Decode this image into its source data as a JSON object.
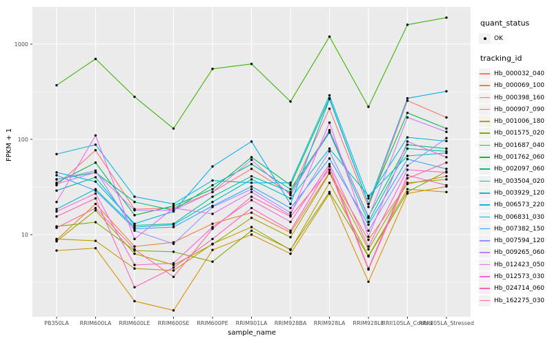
{
  "legend": {
    "quant_status_title": "quant_status",
    "quant_status_items": [
      {
        "label": "OK",
        "symbol": "black-point"
      }
    ],
    "tracking_id_title": "tracking_id"
  },
  "colors": {
    "panel_background": "#EBEBEB",
    "gridline": "#FFFFFF",
    "axis_text": "#4D4D4D",
    "tick_mark": "#333333",
    "point": "#000000",
    "legend_key_background": "#F2F2F2"
  },
  "chart_data": {
    "type": "line",
    "title": "",
    "xlabel": "sample_name",
    "ylabel": "FPKM + 1",
    "y_scale": "log10",
    "y_ticks": [
      10,
      100,
      1000
    ],
    "y_minor_gridlines": [
      3.162,
      31.62,
      316.2
    ],
    "ylim": [
      1.3,
      2500
    ],
    "grid": true,
    "legend_position": "right",
    "point_shape": "filled-circle",
    "categories": [
      "PB350LA",
      "RRIM600LA",
      "RRIM600LE",
      "RRIM600SE",
      "RRIM600PE",
      "RRIM901LA",
      "RRIM928BA",
      "RRIM928LA",
      "RRIM928LE",
      "RRII105LA_Control",
      "RRII105LA_Stressed"
    ],
    "series": [
      {
        "name": "Hb_000032_040",
        "color": "#F8766D",
        "values": [
          33,
          77,
          18.5,
          19,
          28,
          49,
          27,
          210,
          19.5,
          255,
          170
        ]
      },
      {
        "name": "Hb_000069_100",
        "color": "#EA8331",
        "values": [
          8.8,
          21,
          7.5,
          8.3,
          13,
          17,
          10.5,
          45,
          8.8,
          34,
          41
        ]
      },
      {
        "name": "Hb_000398_160",
        "color": "#D89000",
        "values": [
          6.8,
          7.2,
          2.0,
          1.6,
          6.9,
          10,
          6.3,
          27,
          3.2,
          27,
          32
        ]
      },
      {
        "name": "Hb_000907_090",
        "color": "#C09B00",
        "values": [
          9.0,
          8.6,
          4.4,
          4.2,
          8.0,
          12,
          6.9,
          35,
          6.0,
          30,
          28
        ]
      },
      {
        "name": "Hb_001006_180",
        "color": "#A3A500",
        "values": [
          8.5,
          18,
          6.3,
          4.8,
          7.9,
          15,
          9.4,
          44,
          7.0,
          35,
          38
        ]
      },
      {
        "name": "Hb_001575_020",
        "color": "#7CAE00",
        "values": [
          12.2,
          13.5,
          6.8,
          6.6,
          5.2,
          11,
          7.0,
          28,
          5.9,
          28,
          46
        ]
      },
      {
        "name": "Hb_001687_040",
        "color": "#39B600",
        "values": [
          370,
          700,
          280,
          130,
          550,
          620,
          250,
          1200,
          220,
          1600,
          1900
        ]
      },
      {
        "name": "Hb_001762_060",
        "color": "#00BB4E",
        "values": [
          35,
          57,
          16,
          20,
          30,
          65,
          33,
          270,
          21,
          190,
          130
        ]
      },
      {
        "name": "Hb_002097_060",
        "color": "#00BF7D",
        "values": [
          38,
          45,
          22,
          18,
          33,
          55,
          30,
          120,
          15.5,
          88,
          80
        ]
      },
      {
        "name": "Hb_003504_020",
        "color": "#00C1A3",
        "values": [
          29,
          40,
          12.5,
          13,
          25,
          41,
          28,
          118,
          13.6,
          80,
          75
        ]
      },
      {
        "name": "Hb_003929_120",
        "color": "#00BFC4",
        "values": [
          18.5,
          30,
          12,
          12.7,
          22,
          38,
          24,
          80,
          25.5,
          67,
          72
        ]
      },
      {
        "name": "Hb_006573_220",
        "color": "#00BAE0",
        "values": [
          70,
          88,
          25,
          21,
          37,
          35,
          35,
          290,
          24,
          105,
          96
        ]
      },
      {
        "name": "Hb_006831_030",
        "color": "#00B0F6",
        "values": [
          45,
          36,
          13,
          17.5,
          52,
          95,
          21,
          265,
          21,
          270,
          320
        ]
      },
      {
        "name": "Hb_007382_150",
        "color": "#35A2FF",
        "values": [
          42,
          29,
          11.5,
          12,
          20,
          32,
          19,
          63,
          12.7,
          62,
          49
        ]
      },
      {
        "name": "Hb_007594_120",
        "color": "#9590FF",
        "values": [
          38,
          47,
          11,
          8.0,
          19.5,
          30,
          17,
          75,
          11,
          53,
          103
        ]
      },
      {
        "name": "Hb_009265_060",
        "color": "#C77CFF",
        "values": [
          34,
          45,
          18,
          18,
          28,
          61,
          26,
          125,
          15,
          170,
          120
        ]
      },
      {
        "name": "Hb_012423_050",
        "color": "#E76BF3",
        "values": [
          22,
          110,
          9.0,
          19,
          16.5,
          28,
          16,
          150,
          9.5,
          95,
          65
        ]
      },
      {
        "name": "Hb_012573_030",
        "color": "#FA62DB",
        "values": [
          17.5,
          27,
          4.8,
          5.0,
          12,
          23,
          13.6,
          55,
          7.5,
          48,
          45
        ]
      },
      {
        "name": "Hb_024714_060",
        "color": "#FF62BC",
        "values": [
          15.5,
          24,
          2.8,
          4.5,
          9.0,
          19,
          11,
          52,
          4.4,
          42,
          33
        ]
      },
      {
        "name": "Hb_162275_030",
        "color": "#FF6A98",
        "values": [
          11.8,
          19,
          7.0,
          3.6,
          11.5,
          25,
          15.5,
          48,
          4.3,
          39,
          57
        ]
      }
    ]
  }
}
